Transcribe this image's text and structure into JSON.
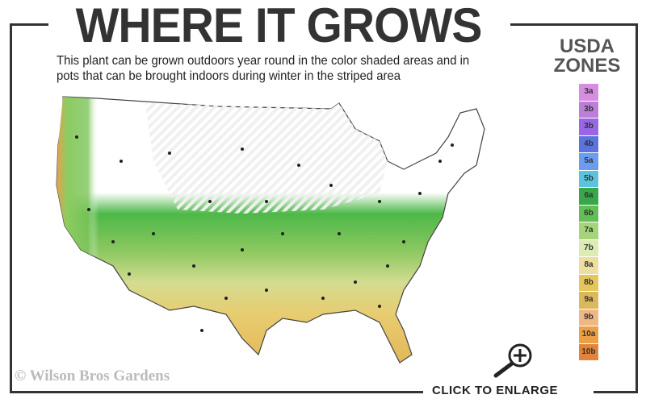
{
  "header": {
    "title": "WHERE IT GROWS",
    "subtitle": "This plant can be grown outdoors year round in the color shaded areas and in pots that can be brought indoors during winter in the striped area"
  },
  "legend": {
    "title_line1": "USDA",
    "title_line2": "ZONES",
    "zones": [
      {
        "label": "3a",
        "color": "#d88ee0"
      },
      {
        "label": "3b",
        "color": "#bb7fd8"
      },
      {
        "label": "3b",
        "color": "#9966e6"
      },
      {
        "label": "4b",
        "color": "#5a73de"
      },
      {
        "label": "5a",
        "color": "#6b9cf0"
      },
      {
        "label": "5b",
        "color": "#5bc4dc"
      },
      {
        "label": "6a",
        "color": "#3aa64a"
      },
      {
        "label": "6b",
        "color": "#62be56"
      },
      {
        "label": "7a",
        "color": "#a6d47a"
      },
      {
        "label": "7b",
        "color": "#dcecb4"
      },
      {
        "label": "8a",
        "color": "#ece0a0"
      },
      {
        "label": "8b",
        "color": "#e6c65c"
      },
      {
        "label": "9a",
        "color": "#dcb85c"
      },
      {
        "label": "9b",
        "color": "#f0b684"
      },
      {
        "label": "10a",
        "color": "#eba046"
      },
      {
        "label": "10b",
        "color": "#e3843a"
      }
    ]
  },
  "map": {
    "region": "Contiguous United States",
    "striped_area": "northern states"
  },
  "footer": {
    "copyright": "© Wilson Bros Gardens",
    "enlarge_label": "CLICK TO ENLARGE",
    "enlarge_icon": "zoom-in-magnifier-icon"
  }
}
